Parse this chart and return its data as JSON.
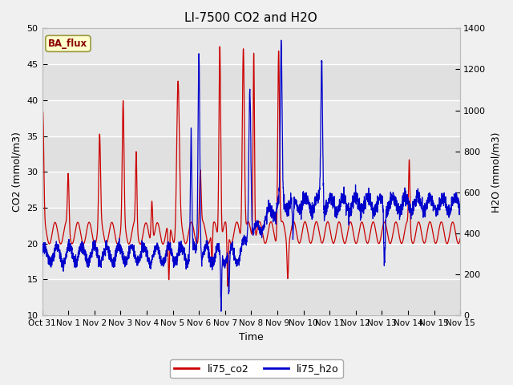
{
  "title": "LI-7500 CO2 and H2O",
  "xlabel": "Time",
  "ylabel_left": "CO2 (mmol/m3)",
  "ylabel_right": "H2O (mmol/m3)",
  "ylim_left": [
    10,
    50
  ],
  "ylim_right": [
    0,
    1400
  ],
  "yticks_left": [
    10,
    15,
    20,
    25,
    30,
    35,
    40,
    45,
    50
  ],
  "yticks_right": [
    0,
    200,
    400,
    600,
    800,
    1000,
    1200,
    1400
  ],
  "co2_color": "#cc0000",
  "h2o_color": "#0000cc",
  "fig_bg": "#f0f0f0",
  "plot_bg": "#e8e8e8",
  "band_light": "#e8e8e8",
  "band_dark": "#d8d8d8",
  "stamp_text": "BA_flux",
  "stamp_bg": "#ffffcc",
  "stamp_border": "#999944",
  "n_points": 3000,
  "seed": 42
}
